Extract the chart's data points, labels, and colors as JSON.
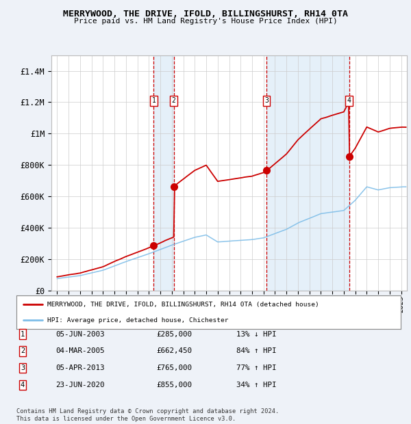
{
  "title": "MERRYWOOD, THE DRIVE, IFOLD, BILLINGSHURST, RH14 0TA",
  "subtitle": "Price paid vs. HM Land Registry's House Price Index (HPI)",
  "ylabel_ticks": [
    "£0",
    "£200K",
    "£400K",
    "£600K",
    "£800K",
    "£1M",
    "£1.2M",
    "£1.4M"
  ],
  "ytick_values": [
    0,
    200000,
    400000,
    600000,
    800000,
    1000000,
    1200000,
    1400000
  ],
  "ylim": [
    0,
    1500000
  ],
  "xlim_start": 1994.5,
  "xlim_end": 2025.5,
  "sale_dates": [
    2003.42,
    2005.17,
    2013.26,
    2020.47
  ],
  "sale_prices": [
    285000,
    662450,
    765000,
    855000
  ],
  "sale_labels": [
    "1",
    "2",
    "3",
    "4"
  ],
  "sale_label_dates": [
    "05-JUN-2003",
    "04-MAR-2005",
    "05-APR-2013",
    "23-JUN-2020"
  ],
  "sale_label_prices": [
    "£285,000",
    "£662,450",
    "£765,000",
    "£855,000"
  ],
  "sale_label_pcts": [
    "13% ↓ HPI",
    "84% ↑ HPI",
    "77% ↑ HPI",
    "34% ↑ HPI"
  ],
  "legend_line1": "MERRYWOOD, THE DRIVE, IFOLD, BILLINGSHURST, RH14 0TA (detached house)",
  "legend_line2": "HPI: Average price, detached house, Chichester",
  "footnote": "Contains HM Land Registry data © Crown copyright and database right 2024.\nThis data is licensed under the Open Government Licence v3.0.",
  "background_color": "#eef2f8",
  "plot_bg_color": "#ffffff",
  "hpi_color": "#7dbde8",
  "property_color": "#cc0000",
  "sale_marker_color": "#cc0000",
  "grid_color": "#cccccc",
  "dashed_line_color": "#cc0000",
  "shade_color": "#d0e4f5",
  "hpi_knots": [
    1995,
    1997,
    1999,
    2001,
    2003,
    2005,
    2007,
    2008,
    2009,
    2010,
    2011,
    2012,
    2013,
    2015,
    2016,
    2017,
    2018,
    2019,
    2020,
    2021,
    2022,
    2023,
    2024,
    2025
  ],
  "hpi_vals": [
    75000,
    95000,
    130000,
    185000,
    235000,
    290000,
    340000,
    355000,
    310000,
    315000,
    320000,
    325000,
    335000,
    390000,
    430000,
    460000,
    490000,
    500000,
    510000,
    575000,
    660000,
    640000,
    655000,
    660000
  ]
}
